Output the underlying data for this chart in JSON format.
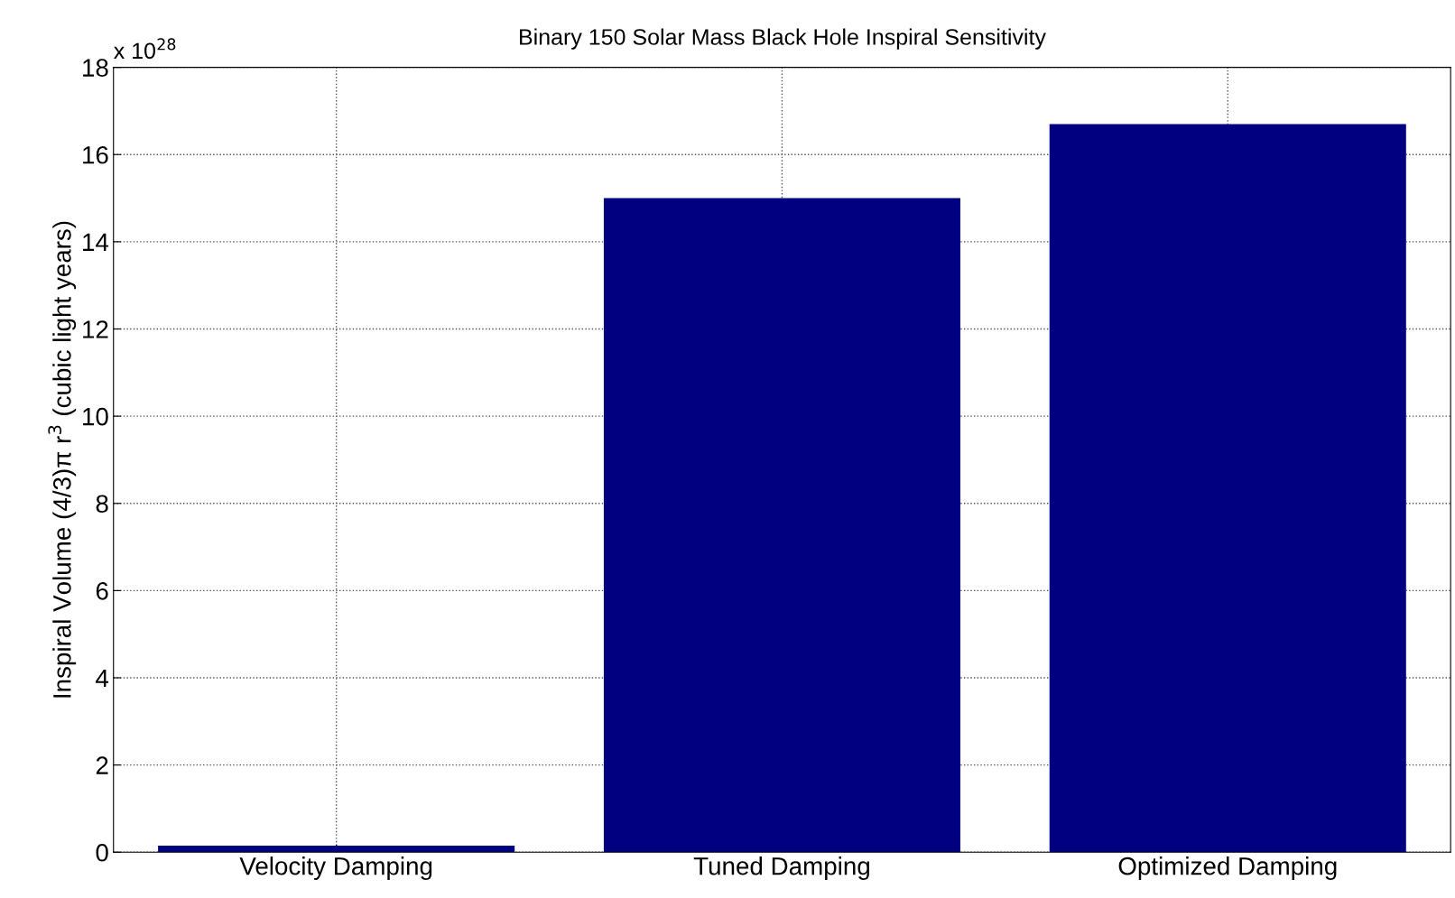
{
  "chart_data": {
    "type": "bar",
    "title": "Binary 150 Solar Mass Black Hole Inspiral Sensitivity",
    "ylabel": "Inspiral Volume (4/3)π r$^{3}$ (cubic light years)",
    "annotations": [
      "x 10$^{28}$"
    ],
    "categories": [
      "Velocity Damping",
      "Tuned Damping",
      "Optimized Damping"
    ],
    "values": [
      0.15,
      15.0,
      16.7
    ],
    "color": "#000080",
    "ylim": [
      0,
      18
    ],
    "yticks": [
      0,
      2,
      4,
      6,
      8,
      10,
      12,
      14,
      16,
      18
    ],
    "grid": true
  }
}
